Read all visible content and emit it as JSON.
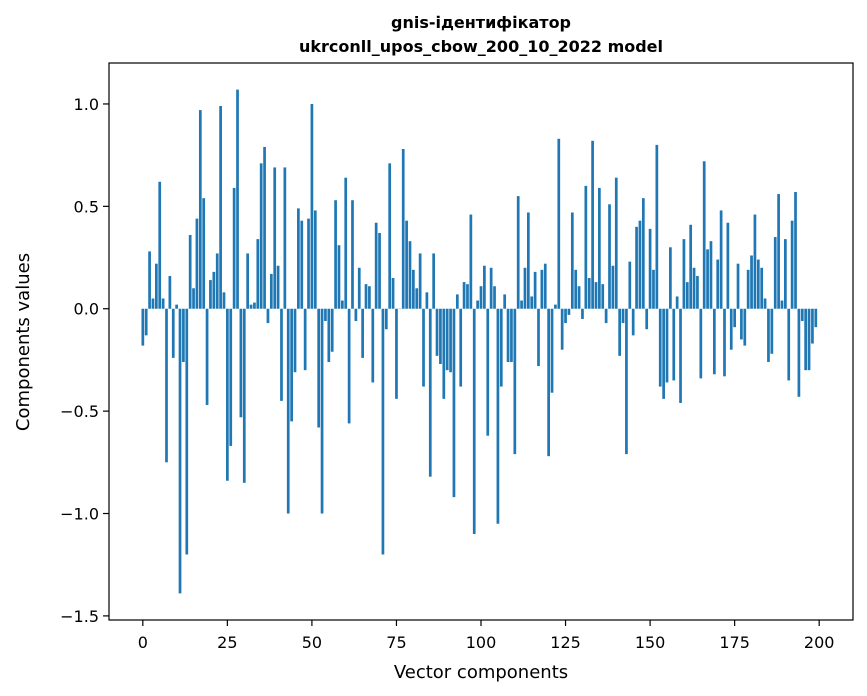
{
  "chart_data": {
    "type": "bar",
    "title_lines": [
      "gnis-ідентифікатор",
      "ukrconll_upos_cbow_200_10_2022 model"
    ],
    "xlabel": "Vector components",
    "ylabel": "Components values",
    "xlim": [
      -10,
      210
    ],
    "ylim": [
      -1.52,
      1.2
    ],
    "xticks": [
      0,
      25,
      50,
      75,
      100,
      125,
      150,
      175,
      200
    ],
    "xtick_labels": [
      "0",
      "25",
      "50",
      "75",
      "100",
      "125",
      "150",
      "175",
      "200"
    ],
    "yticks": [
      -1.5,
      -1.0,
      -0.5,
      0.0,
      0.5,
      1.0
    ],
    "ytick_labels": [
      "−1.5",
      "−1.0",
      "−0.5",
      "0.0",
      "0.5",
      "1.0"
    ],
    "bar_color": "#1f77b4",
    "values": [
      -0.18,
      -0.13,
      0.28,
      0.05,
      0.22,
      0.62,
      0.05,
      -0.75,
      0.16,
      -0.24,
      0.02,
      -1.39,
      -0.26,
      -1.2,
      0.36,
      0.1,
      0.44,
      0.97,
      0.54,
      -0.47,
      0.14,
      0.18,
      0.27,
      0.99,
      0.08,
      -0.84,
      -0.67,
      0.59,
      1.07,
      -0.53,
      -0.85,
      0.27,
      0.02,
      0.03,
      0.34,
      0.71,
      0.79,
      -0.07,
      0.17,
      0.69,
      0.21,
      -0.45,
      0.69,
      -1.0,
      -0.55,
      -0.31,
      0.49,
      0.43,
      -0.3,
      0.44,
      1.0,
      0.48,
      -0.58,
      -1.0,
      -0.06,
      -0.26,
      -0.21,
      0.53,
      0.31,
      0.04,
      0.64,
      -0.56,
      0.53,
      -0.06,
      0.2,
      -0.24,
      0.12,
      0.11,
      -0.36,
      0.42,
      0.37,
      -1.2,
      -0.1,
      0.71,
      0.15,
      -0.44,
      0.0,
      0.78,
      0.43,
      0.33,
      0.19,
      0.1,
      0.27,
      -0.38,
      0.08,
      -0.82,
      0.27,
      -0.23,
      -0.27,
      -0.44,
      -0.3,
      -0.31,
      -0.92,
      0.07,
      -0.38,
      0.13,
      0.12,
      0.46,
      -1.1,
      0.04,
      0.11,
      0.21,
      -0.62,
      0.2,
      0.11,
      -1.05,
      -0.38,
      0.07,
      -0.26,
      -0.26,
      -0.71,
      0.55,
      0.04,
      0.2,
      0.47,
      0.06,
      0.18,
      -0.28,
      0.19,
      0.22,
      -0.72,
      -0.41,
      0.02,
      0.83,
      -0.2,
      -0.07,
      -0.03,
      0.47,
      0.19,
      0.11,
      -0.05,
      0.6,
      0.15,
      0.82,
      0.13,
      0.59,
      0.12,
      -0.07,
      0.51,
      0.21,
      0.64,
      -0.23,
      -0.07,
      -0.71,
      0.23,
      -0.13,
      0.4,
      0.43,
      0.54,
      -0.1,
      0.39,
      0.19,
      0.8,
      -0.38,
      -0.44,
      -0.36,
      0.3,
      -0.35,
      0.06,
      -0.46,
      0.34,
      0.13,
      0.41,
      0.2,
      0.16,
      -0.34,
      0.72,
      0.29,
      0.33,
      -0.32,
      0.24,
      0.48,
      -0.33,
      0.42,
      -0.2,
      -0.09,
      0.22,
      -0.15,
      -0.18,
      0.19,
      0.26,
      0.46,
      0.24,
      0.2,
      0.05,
      -0.26,
      -0.22,
      0.35,
      0.56,
      0.04,
      0.34,
      -0.35,
      0.43,
      0.57,
      -0.43,
      -0.06,
      -0.3,
      -0.3,
      -0.17,
      -0.09
    ]
  }
}
